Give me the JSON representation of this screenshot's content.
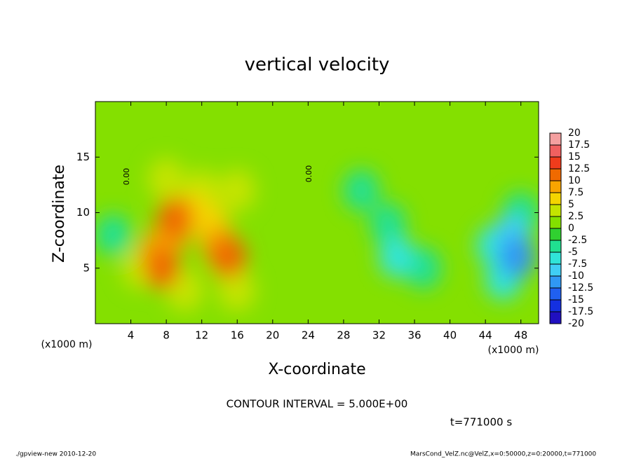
{
  "chart_data": {
    "type": "contour",
    "title": "vertical velocity",
    "xlabel": "X-coordinate",
    "ylabel": "Z-coordinate",
    "x_unit_labels": [
      "(x1000 m)",
      "(x1000 m)"
    ],
    "xlim": [
      0,
      50
    ],
    "xticks": [
      4,
      8,
      12,
      16,
      20,
      24,
      28,
      32,
      36,
      40,
      44,
      48
    ],
    "ylim": [
      0,
      20
    ],
    "yticks": [
      5,
      10,
      15
    ],
    "background_value": 1,
    "field": {
      "x": [
        7.5,
        7,
        9,
        8.5,
        11,
        15,
        14,
        13,
        12,
        8,
        16,
        5,
        10,
        12,
        16,
        34,
        33,
        30,
        47.5,
        47,
        46,
        48,
        45,
        2,
        37
      ],
      "z": [
        5,
        6.5,
        9.5,
        8,
        10,
        6,
        7,
        9,
        12,
        13,
        12,
        5,
        3,
        3,
        3,
        6,
        9,
        12,
        6,
        8,
        4,
        10,
        7,
        8,
        5
      ],
      "values": [
        12,
        10,
        12,
        8,
        7,
        12,
        9,
        6,
        4,
        4,
        3,
        4,
        3,
        2,
        4,
        -6,
        -4,
        -3,
        -11,
        -8,
        -7,
        -4,
        -6,
        -3,
        -3
      ]
    },
    "contour_labels": [
      "0.00",
      "0.00"
    ],
    "colorbar": {
      "levels": [
        20,
        17.5,
        15,
        12.5,
        10,
        7.5,
        5,
        2.5,
        0,
        -2.5,
        -5,
        -7.5,
        -10,
        -12.5,
        -15,
        -17.5,
        -20
      ],
      "colors": [
        "#f4a0a0",
        "#f06060",
        "#f03c1c",
        "#f06a00",
        "#f8a400",
        "#f4d400",
        "#c4e400",
        "#84e000",
        "#30d030",
        "#20e090",
        "#30e4d8",
        "#40cef4",
        "#3098f4",
        "#2060f0",
        "#1430e0",
        "#2010c0"
      ]
    },
    "contour_interval": "CONTOUR INTERVAL = 5.000E+00",
    "time_label": "t=771000 s",
    "footer_left": "./gpview-new  2010-12-20",
    "footer_right": "MarsCond_VelZ.nc@VelZ,x=0:50000,z=0:20000,t=771000"
  }
}
